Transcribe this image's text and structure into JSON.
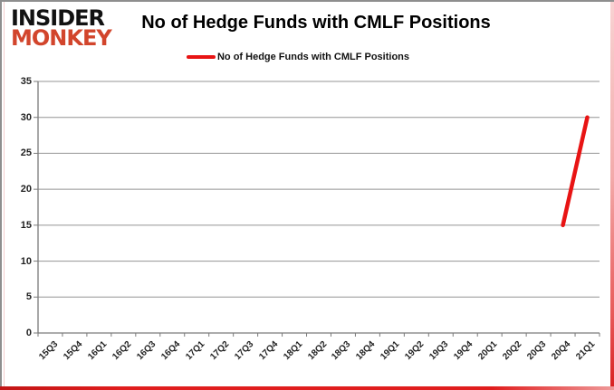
{
  "logo": {
    "line1": "INSIDER",
    "line2": "MONKEY",
    "line1_color": "#121212",
    "line2_color": "#d2452c"
  },
  "header": {
    "title": "No of Hedge Funds with CMLF Positions"
  },
  "legend": {
    "label": "No of Hedge Funds with CMLF Positions",
    "marker_color": "#e81414"
  },
  "chart_data": {
    "type": "line",
    "title": "No of Hedge Funds with CMLF Positions",
    "categories": [
      "15Q3",
      "15Q4",
      "16Q1",
      "16Q2",
      "16Q3",
      "16Q4",
      "17Q1",
      "17Q2",
      "17Q3",
      "17Q4",
      "18Q1",
      "18Q2",
      "18Q3",
      "18Q4",
      "19Q1",
      "19Q2",
      "19Q3",
      "19Q4",
      "20Q1",
      "20Q2",
      "20Q3",
      "20Q4",
      "21Q1"
    ],
    "series": [
      {
        "name": "No of Hedge Funds with CMLF Positions",
        "color": "#e81414",
        "values": [
          null,
          null,
          null,
          null,
          null,
          null,
          null,
          null,
          null,
          null,
          null,
          null,
          null,
          null,
          null,
          null,
          null,
          null,
          null,
          null,
          null,
          15,
          30
        ]
      }
    ],
    "ylim": [
      0,
      35
    ],
    "ytick_step": 5,
    "grid": true,
    "legend_position": "top",
    "xlabel": "",
    "ylabel": "",
    "grid_color": "#949494",
    "axis_color": "#7a7a7a",
    "tick_label_color": "#1f1f1f"
  }
}
